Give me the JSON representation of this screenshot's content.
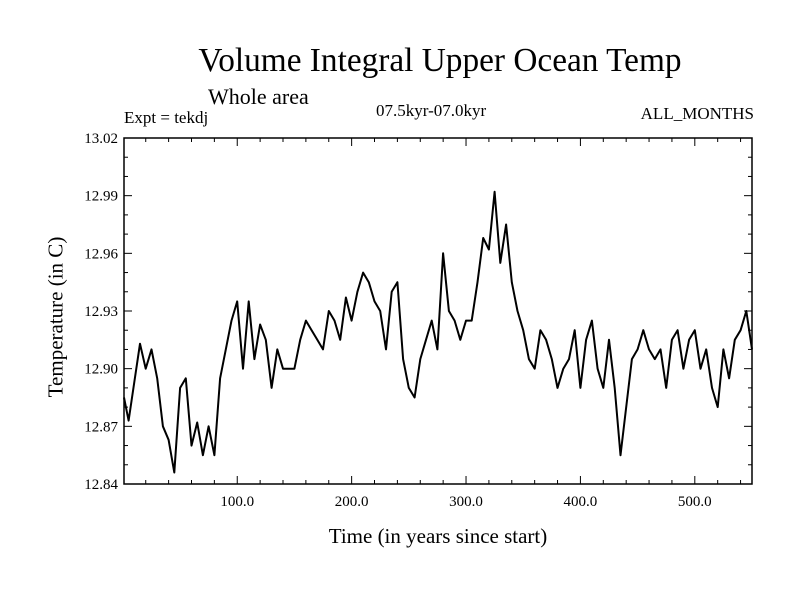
{
  "chart_data": {
    "type": "line",
    "title": "Volume Integral Upper Ocean Temp",
    "subtitle": "Whole area",
    "expt_label": "Expt = tekdj",
    "period_label": "07.5kyr-07.0kyr",
    "months_label": "ALL_MONTHS",
    "xlabel": "Time (in years since start)",
    "ylabel": "Temperature (in C)",
    "xlim": [
      1,
      550
    ],
    "ylim": [
      12.84,
      13.02
    ],
    "xticks": [
      100,
      200,
      300,
      400,
      500
    ],
    "xtick_labels": [
      "100.0",
      "200.0",
      "300.0",
      "400.0",
      "500.0"
    ],
    "yticks": [
      12.84,
      12.87,
      12.9,
      12.93,
      12.96,
      12.99,
      13.02
    ],
    "ytick_labels": [
      "12.84",
      "12.87",
      "12.90",
      "12.93",
      "12.96",
      "12.99",
      "13.02"
    ],
    "series": [
      {
        "name": "Volume integral upper ocean temperature",
        "color": "#000000",
        "x": [
          1,
          5,
          10,
          15,
          20,
          25,
          30,
          35,
          40,
          45,
          50,
          55,
          60,
          65,
          70,
          75,
          80,
          85,
          90,
          95,
          100,
          105,
          110,
          115,
          120,
          125,
          130,
          135,
          140,
          145,
          150,
          155,
          160,
          165,
          170,
          175,
          180,
          185,
          190,
          195,
          200,
          205,
          210,
          215,
          220,
          225,
          230,
          235,
          240,
          245,
          250,
          255,
          260,
          265,
          270,
          275,
          280,
          285,
          290,
          295,
          300,
          305,
          310,
          315,
          320,
          325,
          330,
          335,
          340,
          345,
          350,
          355,
          360,
          365,
          370,
          375,
          380,
          385,
          390,
          395,
          400,
          405,
          410,
          415,
          420,
          425,
          430,
          435,
          440,
          445,
          450,
          455,
          460,
          465,
          470,
          475,
          480,
          485,
          490,
          495,
          500,
          505,
          510,
          515,
          520,
          525,
          530,
          535,
          540,
          545,
          550
        ],
        "y": [
          12.885,
          12.873,
          12.893,
          12.913,
          12.9,
          12.91,
          12.895,
          12.87,
          12.863,
          12.846,
          12.89,
          12.895,
          12.86,
          12.872,
          12.855,
          12.87,
          12.855,
          12.895,
          12.91,
          12.925,
          12.935,
          12.9,
          12.935,
          12.905,
          12.923,
          12.915,
          12.89,
          12.91,
          12.9,
          12.9,
          12.9,
          12.915,
          12.925,
          12.92,
          12.915,
          12.91,
          12.93,
          12.925,
          12.915,
          12.937,
          12.925,
          12.94,
          12.95,
          12.945,
          12.935,
          12.93,
          12.91,
          12.94,
          12.945,
          12.905,
          12.89,
          12.885,
          12.905,
          12.915,
          12.925,
          12.91,
          12.96,
          12.93,
          12.925,
          12.915,
          12.925,
          12.925,
          12.945,
          12.968,
          12.962,
          12.992,
          12.955,
          12.975,
          12.945,
          12.93,
          12.92,
          12.905,
          12.9,
          12.92,
          12.915,
          12.905,
          12.89,
          12.9,
          12.905,
          12.92,
          12.89,
          12.915,
          12.925,
          12.9,
          12.89,
          12.915,
          12.89,
          12.855,
          12.88,
          12.905,
          12.91,
          12.92,
          12.91,
          12.905,
          12.91,
          12.89,
          12.915,
          12.92,
          12.9,
          12.915,
          12.92,
          12.9,
          12.91,
          12.89,
          12.88,
          12.91,
          12.895,
          12.915,
          12.92,
          12.93,
          12.91
        ]
      }
    ]
  }
}
